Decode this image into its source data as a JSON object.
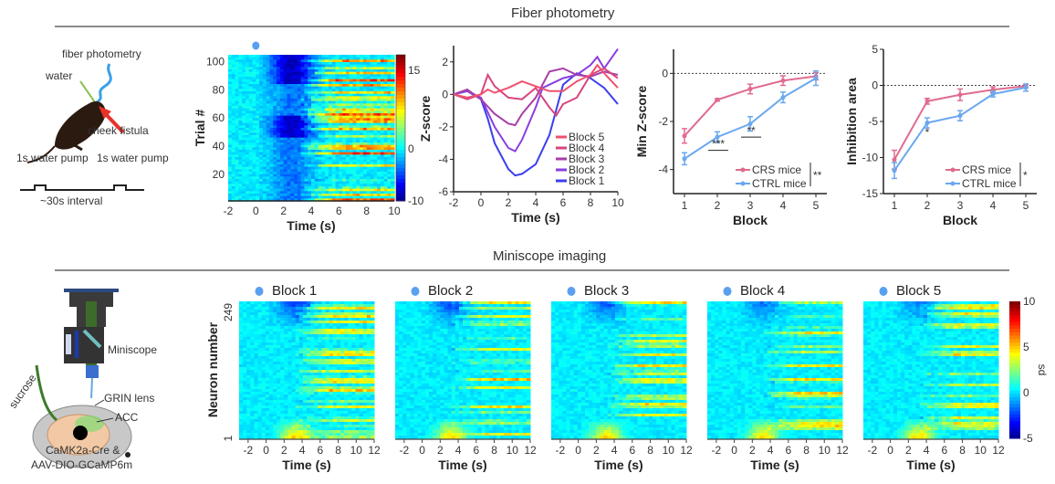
{
  "sections": {
    "fiber": {
      "title": "Fiber photometry"
    },
    "miniscope": {
      "title": "Miniscope imaging"
    }
  },
  "schematic_fiber": {
    "labels": {
      "fiber": "fiber photometry",
      "water": "water",
      "cheek": "cheek fistula",
      "pump1": "1s water pump",
      "pump2": "1s water pump",
      "interval": "~30s interval"
    },
    "colors": {
      "mouse": "#2b1a10",
      "fiber": "#3aa0e8",
      "water": "#8cc152",
      "arrow": "#e8322a"
    }
  },
  "schematic_miniscope": {
    "labels": {
      "miniscope": "Miniscope",
      "grin": "GRIN lens",
      "acc": "ACC",
      "sucrose": "sucrose",
      "line1": "CaMK2a-Cre &",
      "line2": "AAV-DIO-GCaMP6m"
    }
  },
  "chart_data": [
    {
      "id": "trial-heatmap",
      "type": "heatmap",
      "xlabel": "Time (s)",
      "ylabel": "Trial #",
      "xlim": [
        -2,
        10
      ],
      "ylim": [
        1,
        105
      ],
      "xticks": [
        -2,
        0,
        2,
        4,
        6,
        8,
        10
      ],
      "yticks": [
        20,
        40,
        60,
        80,
        100
      ],
      "colorbar": {
        "ticks": [
          15,
          0,
          -10
        ],
        "range": [
          -10,
          18
        ]
      },
      "stimulus_marker": "water drop at t=0"
    },
    {
      "id": "zscore-traces",
      "type": "line",
      "xlabel": "Time (s)",
      "ylabel": "Z-score",
      "xlim": [
        -2,
        10
      ],
      "ylim": [
        -6,
        3
      ],
      "xticks": [
        -2,
        0,
        2,
        4,
        6,
        8,
        10
      ],
      "yticks": [
        2,
        0,
        -2,
        -4,
        -6
      ],
      "legend_position": "bottom-right",
      "series": [
        {
          "name": "Block 5",
          "color": "#f0506e",
          "x": [
            -2,
            -1,
            0,
            0.5,
            1,
            2,
            3,
            4,
            5,
            6,
            7,
            8,
            8.5,
            9,
            10
          ],
          "y": [
            0,
            -0.2,
            0,
            0.3,
            0.1,
            0.4,
            0.8,
            0.5,
            0.2,
            0.2,
            0.8,
            1.2,
            1.8,
            1.3,
            0.4
          ]
        },
        {
          "name": "Block 4",
          "color": "#d8457e",
          "x": [
            -2,
            -1,
            0,
            0.5,
            1,
            2,
            3,
            4,
            5,
            5.5,
            6,
            7,
            8,
            9,
            10
          ],
          "y": [
            0,
            -0.3,
            0,
            1.2,
            0.5,
            -0.2,
            -0.3,
            0.4,
            -0.8,
            -1.3,
            -0.6,
            -0.2,
            1.2,
            1.6,
            1.0
          ]
        },
        {
          "name": "Block 3",
          "color": "#a83ea8",
          "x": [
            -2,
            -1,
            0,
            1,
            2,
            2.5,
            3,
            4,
            5,
            6,
            7,
            8,
            9,
            10
          ],
          "y": [
            0,
            0.3,
            -0.3,
            -1.2,
            -1.8,
            -1.9,
            -1.2,
            -0.2,
            1.4,
            1.6,
            1.2,
            1.1,
            1.4,
            1.2
          ]
        },
        {
          "name": "Block 2",
          "color": "#8a3ee0",
          "x": [
            -2,
            -1,
            0,
            1,
            2,
            2.5,
            3,
            4,
            4.5,
            5,
            6,
            7,
            8,
            8.5,
            9,
            10
          ],
          "y": [
            0,
            0.2,
            -0.2,
            -2,
            -3.3,
            -3.5,
            -2.8,
            -0.8,
            0.4,
            0.6,
            1.0,
            1.2,
            1.8,
            2.3,
            1.6,
            2.8
          ]
        },
        {
          "name": "Block 1",
          "color": "#3b3ef0",
          "x": [
            -2,
            -1,
            0,
            0.5,
            1,
            2,
            2.5,
            3,
            4,
            5,
            6,
            7,
            8,
            9,
            10
          ],
          "y": [
            0,
            0.2,
            -0.3,
            -1.5,
            -3,
            -4.6,
            -5.0,
            -4.9,
            -4.3,
            -2.5,
            0.6,
            1.3,
            1.0,
            0.4,
            -0.6
          ]
        }
      ]
    },
    {
      "id": "min-zscore",
      "type": "line",
      "xlabel": "Block",
      "ylabel": "Min Z-score",
      "categories": [
        1,
        2,
        3,
        4,
        5
      ],
      "ylim": [
        -5,
        1
      ],
      "yticks": [
        0,
        -2,
        -4
      ],
      "reference_line": 0,
      "legend_position": "bottom-right",
      "significance": [
        "***",
        "**"
      ],
      "overall_significance": "**",
      "series": [
        {
          "name": "CRS mice",
          "color": "#e06b8e",
          "values": [
            -2.6,
            -1.1,
            -0.65,
            -0.3,
            -0.12
          ],
          "errors": [
            0.3,
            0.05,
            0.2,
            0.2,
            0.15
          ]
        },
        {
          "name": "CTRL mice",
          "color": "#6aa8ee",
          "values": [
            -3.55,
            -2.65,
            -2.1,
            -1.0,
            -0.2
          ],
          "errors": [
            0.25,
            0.22,
            0.3,
            0.22,
            0.3
          ]
        }
      ]
    },
    {
      "id": "inhibition-area",
      "type": "line",
      "xlabel": "Block",
      "ylabel": "Inhibition area",
      "categories": [
        1,
        2,
        3,
        4,
        5
      ],
      "ylim": [
        -15,
        5
      ],
      "yticks": [
        5,
        0,
        -5,
        -10,
        -15
      ],
      "reference_line": 0,
      "legend_position": "bottom-right",
      "significance": [
        "*"
      ],
      "overall_significance": "*",
      "series": [
        {
          "name": "CRS mice",
          "color": "#e06b8e",
          "values": [
            -10.3,
            -2.2,
            -1.3,
            -0.6,
            -0.1
          ],
          "errors": [
            1.3,
            0.4,
            0.8,
            0.4,
            0.2
          ]
        },
        {
          "name": "CTRL mice",
          "color": "#6aa8ee",
          "values": [
            -11.8,
            -5.2,
            -4.2,
            -1.2,
            -0.3
          ],
          "errors": [
            1.1,
            0.7,
            0.7,
            0.4,
            0.5
          ]
        }
      ]
    },
    {
      "id": "miniscope-heatmaps",
      "type": "heatmap",
      "panels": [
        "Block 1",
        "Block 2",
        "Block 3",
        "Block 4",
        "Block 5"
      ],
      "xlabel": "Time (s)",
      "ylabel": "Neuron number",
      "xticks": [
        -2,
        0,
        2,
        4,
        6,
        8,
        10,
        12
      ],
      "xlim": [
        -3,
        12
      ],
      "yticks": [
        1,
        249
      ],
      "colorbar": {
        "label": "sd",
        "ticks": [
          10,
          5,
          0,
          -5
        ],
        "range": [
          -5,
          10
        ]
      }
    }
  ]
}
